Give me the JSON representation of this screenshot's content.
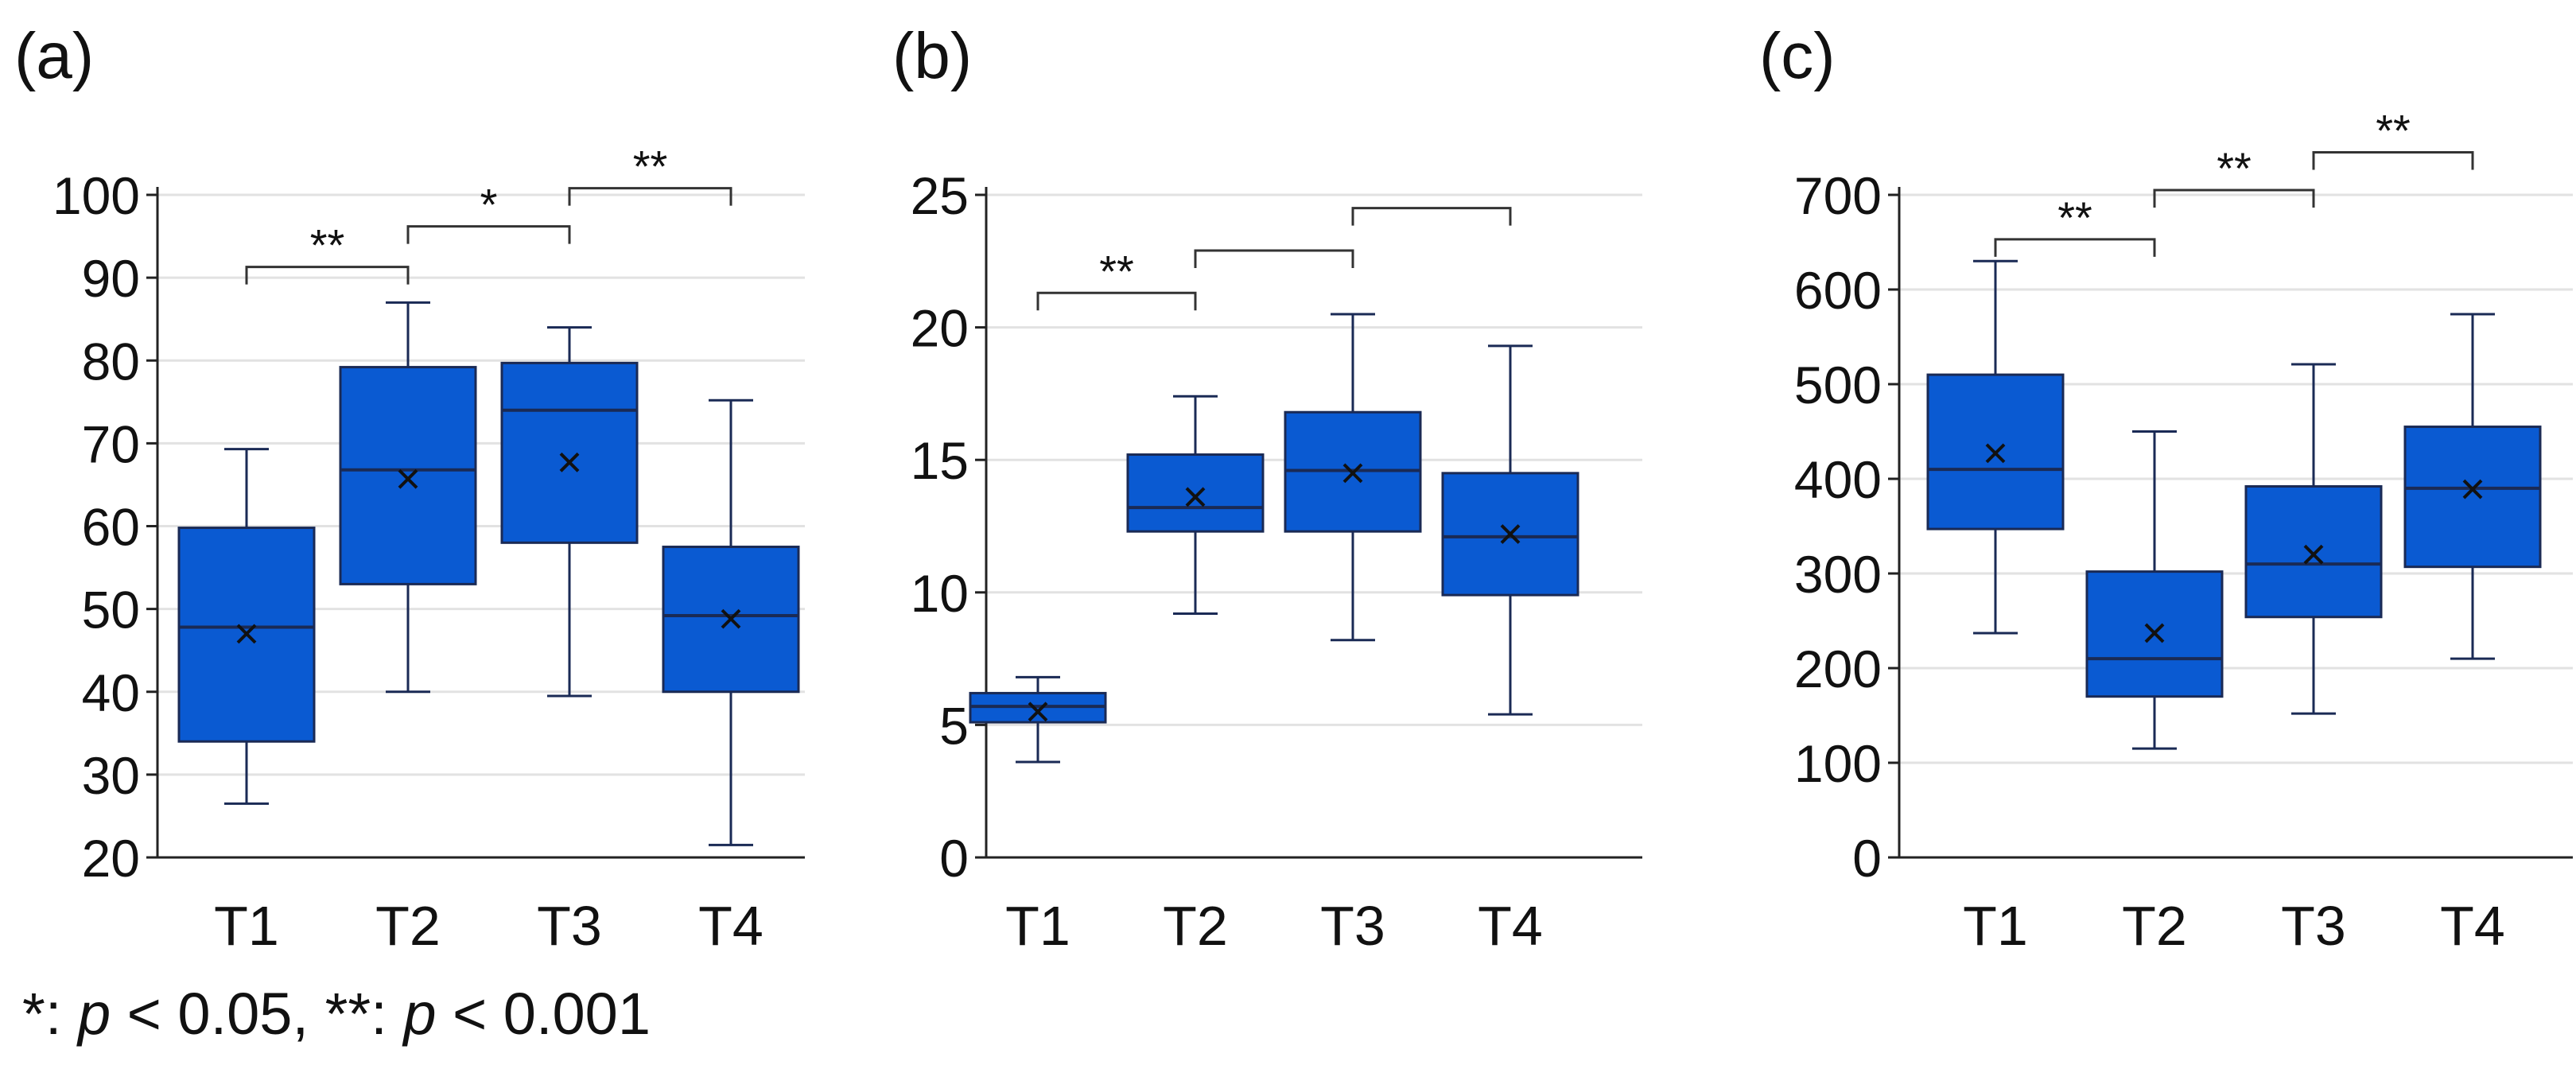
{
  "footnote": {
    "star1": "*",
    "sep1": ":",
    "p1": "p",
    "cond1": "< 0.05,",
    "star2": "**",
    "sep2": ":",
    "p2": "p",
    "cond2": "< 0.001"
  },
  "style": {
    "box_fill": "#0a5ad2",
    "box_stroke": "#1a2a55",
    "grid": "#e2e2e2",
    "axis": "#222222"
  },
  "chart_data": [
    {
      "type": "box",
      "panel_label": "(a)",
      "categories": [
        "T1",
        "T2",
        "T3",
        "T4"
      ],
      "ylim": [
        20,
        100
      ],
      "yticks": [
        20,
        30,
        40,
        50,
        60,
        70,
        80,
        90,
        100
      ],
      "grid": true,
      "boxes": [
        {
          "category": "T1",
          "min": 26.5,
          "q1": 34,
          "median": 47.8,
          "q3": 59.8,
          "max": 69.3,
          "mean": 47
        },
        {
          "category": "T2",
          "min": 40,
          "q1": 53,
          "median": 66.8,
          "q3": 79.2,
          "max": 87,
          "mean": 65.7
        },
        {
          "category": "T3",
          "min": 39.5,
          "q1": 58,
          "median": 74,
          "q3": 79.7,
          "max": 84,
          "mean": 67.7
        },
        {
          "category": "T4",
          "min": 21.5,
          "q1": 40,
          "median": 49.2,
          "q3": 57.5,
          "max": 75.2,
          "mean": 48.8
        }
      ],
      "significance": [
        {
          "from": "T1",
          "to": "T2",
          "label": "**",
          "y": 91.3
        },
        {
          "from": "T2",
          "to": "T3",
          "label": "*",
          "y": 96.2
        },
        {
          "from": "T3",
          "to": "T4",
          "label": "**",
          "y": 100.8
        }
      ]
    },
    {
      "type": "box",
      "panel_label": "(b)",
      "categories": [
        "T1",
        "T2",
        "T3",
        "T4"
      ],
      "ylim": [
        0,
        25
      ],
      "yticks": [
        0,
        5,
        10,
        15,
        20,
        25
      ],
      "grid": true,
      "boxes": [
        {
          "category": "T1",
          "min": 3.6,
          "q1": 5.1,
          "median": 5.7,
          "q3": 6.2,
          "max": 6.8,
          "mean": 5.5
        },
        {
          "category": "T2",
          "min": 9.2,
          "q1": 12.3,
          "median": 13.2,
          "q3": 15.2,
          "max": 17.4,
          "mean": 13.6
        },
        {
          "category": "T3",
          "min": 8.2,
          "q1": 12.3,
          "median": 14.6,
          "q3": 16.8,
          "max": 20.5,
          "mean": 14.5
        },
        {
          "category": "T4",
          "min": 5.4,
          "q1": 9.9,
          "median": 12.1,
          "q3": 14.5,
          "max": 19.3,
          "mean": 12.2
        }
      ],
      "significance": [
        {
          "from": "T1",
          "to": "T2",
          "label": "**",
          "y": 21.3
        },
        {
          "from": "T2",
          "to": "T3",
          "label": "",
          "y": 22.9
        },
        {
          "from": "T3",
          "to": "T4",
          "label": "",
          "y": 24.5
        }
      ]
    },
    {
      "type": "box",
      "panel_label": "(c)",
      "categories": [
        "T1",
        "T2",
        "T3",
        "T4"
      ],
      "ylim": [
        0,
        700
      ],
      "yticks": [
        0,
        100,
        200,
        300,
        400,
        500,
        600,
        700
      ],
      "grid": true,
      "boxes": [
        {
          "category": "T1",
          "min": 237,
          "q1": 347,
          "median": 410,
          "q3": 510,
          "max": 630,
          "mean": 427
        },
        {
          "category": "T2",
          "min": 115,
          "q1": 170,
          "median": 210,
          "q3": 302,
          "max": 450,
          "mean": 237
        },
        {
          "category": "T3",
          "min": 152,
          "q1": 254,
          "median": 310,
          "q3": 392,
          "max": 521,
          "mean": 320
        },
        {
          "category": "T4",
          "min": 210,
          "q1": 307,
          "median": 390,
          "q3": 455,
          "max": 574,
          "mean": 389
        }
      ],
      "significance": [
        {
          "from": "T1",
          "to": "T2",
          "label": "**",
          "y": 653
        },
        {
          "from": "T2",
          "to": "T3",
          "label": "**",
          "y": 705
        },
        {
          "from": "T3",
          "to": "T4",
          "label": "**",
          "y": 745
        }
      ]
    }
  ]
}
